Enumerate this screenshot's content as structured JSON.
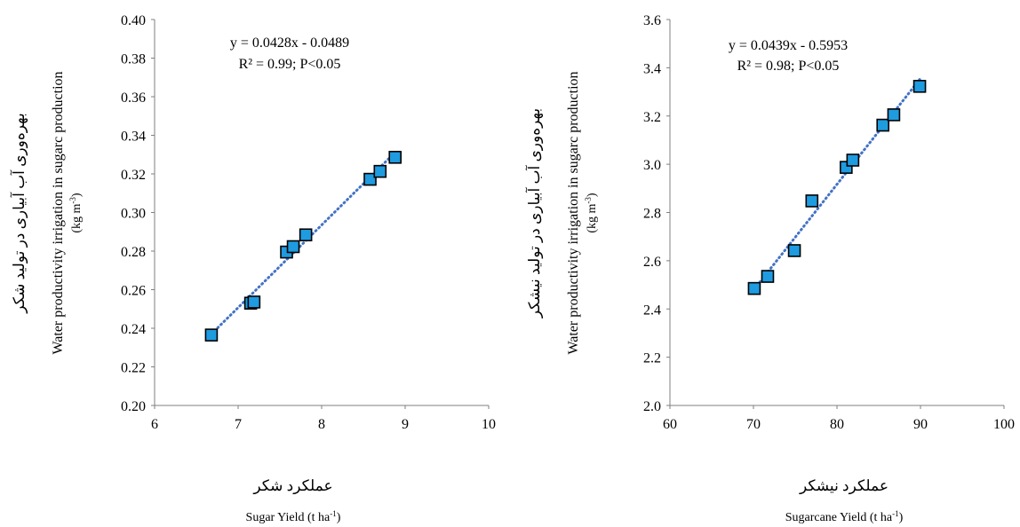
{
  "chart_data": [
    {
      "type": "scatter",
      "panel": "left",
      "x": [
        6.68,
        7.15,
        7.19,
        7.58,
        7.66,
        7.81,
        8.58,
        8.7,
        8.88
      ],
      "y": [
        0.2365,
        0.253,
        0.2536,
        0.2795,
        0.2823,
        0.2884,
        0.3172,
        0.3213,
        0.3286
      ],
      "xlim": [
        6,
        10
      ],
      "ylim": [
        0.2,
        0.4
      ],
      "xticks": [
        "6",
        "7",
        "8",
        "9",
        "10"
      ],
      "yticks": [
        "0.20",
        "0.22",
        "0.24",
        "0.26",
        "0.28",
        "0.30",
        "0.32",
        "0.34",
        "0.36",
        "0.38",
        "0.40"
      ],
      "trendline": {
        "slope": 0.0428,
        "intercept": -0.0489,
        "x_range": [
          6.68,
          8.88
        ]
      },
      "equation": "y = 0.0428x - 0.0489",
      "stats": "R² = 0.99; P<0.05",
      "xlabel_fa": "عملکرد شکر",
      "xlabel_en": "Sugar Yield (t ha",
      "xlabel_en_sup": "-1",
      "xlabel_en_end": ")",
      "ylabel_fa": "بهره‌وری آب آبیاری در تولید شکر",
      "ylabel_en": "Water productivity irrigation in sugarc production",
      "ylabel_unit": "(kg m",
      "ylabel_unit_sup": "-3",
      "ylabel_unit_end": ")",
      "grid": false,
      "marker_color": "#1f9be0",
      "trend_color": "#4472c4"
    },
    {
      "type": "scatter",
      "panel": "right",
      "x": [
        70.1,
        71.7,
        74.9,
        77.0,
        81.1,
        81.9,
        85.5,
        86.8,
        89.9
      ],
      "y": [
        2.485,
        2.535,
        2.642,
        2.848,
        2.987,
        3.017,
        3.162,
        3.205,
        3.323
      ],
      "xlim": [
        60,
        100
      ],
      "ylim": [
        2.0,
        3.6
      ],
      "xticks": [
        "60",
        "70",
        "80",
        "90",
        "100"
      ],
      "yticks": [
        "2.0",
        "2.2",
        "2.4",
        "2.6",
        "2.8",
        "3.0",
        "3.2",
        "3.4",
        "3.6"
      ],
      "trendline": {
        "slope": 0.0439,
        "intercept": -0.5953,
        "x_range": [
          70.1,
          89.9
        ]
      },
      "equation": "y = 0.0439x - 0.5953",
      "stats": "R² = 0.98; P<0.05",
      "xlabel_fa": "عملکرد نیشکر",
      "xlabel_en": "Sugarcane Yield (t ha",
      "xlabel_en_sup": "-1",
      "xlabel_en_end": ")",
      "ylabel_fa": "بهره‌وری آب آبیاری در تولید نیشکر",
      "ylabel_en": "Water productivity irrigation in sugarc production",
      "ylabel_unit": "(kg m",
      "ylabel_unit_sup": "-3",
      "ylabel_unit_end": ")",
      "grid": false,
      "marker_color": "#1f9be0",
      "trend_color": "#4472c4"
    }
  ]
}
